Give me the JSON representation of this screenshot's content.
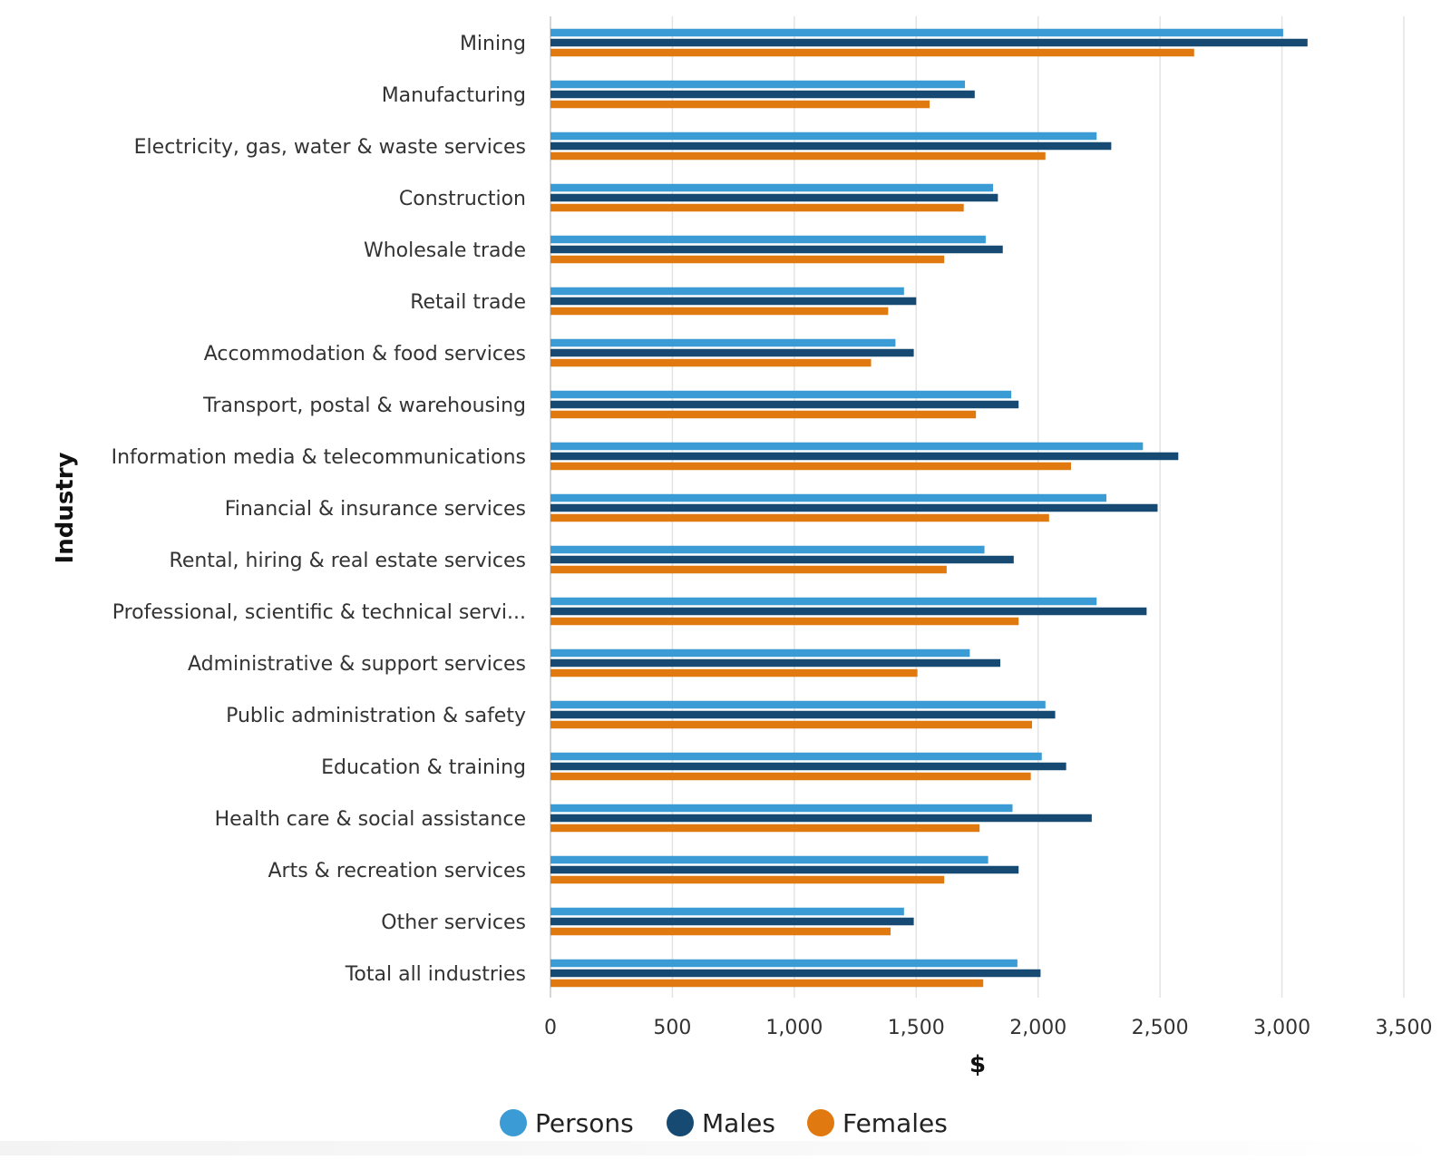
{
  "chart_data": {
    "type": "bar",
    "orientation": "horizontal",
    "title": "",
    "xlabel": "$",
    "ylabel": "Industry",
    "xlim": [
      0,
      3500
    ],
    "xticks": [
      0,
      500,
      1000,
      1500,
      2000,
      2500,
      3000,
      3500
    ],
    "xtick_labels": [
      "0",
      "500",
      "1,000",
      "1,500",
      "2,000",
      "2,500",
      "3,000",
      "3,500"
    ],
    "grid": true,
    "legend_position": "bottom",
    "categories": [
      "Mining",
      "Manufacturing",
      "Electricity, gas, water & waste services",
      "Construction",
      "Wholesale trade",
      "Retail trade",
      "Accommodation & food services",
      "Transport, postal & warehousing",
      "Information media & telecommunications",
      "Financial & insurance services",
      "Rental, hiring & real estate services",
      "Professional, scientific & technical servi...",
      "Administrative & support services",
      "Public administration & safety",
      "Education & training",
      "Health care & social assistance",
      "Arts & recreation services",
      "Other services",
      "Total all industries"
    ],
    "series": [
      {
        "name": "Persons",
        "color": "#3a9bd5",
        "values": [
          3005,
          1700,
          2240,
          1815,
          1785,
          1450,
          1415,
          1890,
          2430,
          2280,
          1780,
          2240,
          1720,
          2030,
          2015,
          1895,
          1795,
          1450,
          1915
        ]
      },
      {
        "name": "Males",
        "color": "#164a72",
        "values": [
          3105,
          1740,
          2300,
          1835,
          1855,
          1500,
          1490,
          1920,
          2575,
          2490,
          1900,
          2445,
          1845,
          2070,
          2115,
          2220,
          1920,
          1490,
          2010
        ]
      },
      {
        "name": "Females",
        "color": "#e07a10",
        "values": [
          2640,
          1555,
          2030,
          1695,
          1615,
          1385,
          1315,
          1745,
          2135,
          2045,
          1625,
          1920,
          1505,
          1975,
          1970,
          1760,
          1615,
          1395,
          1775
        ]
      }
    ]
  }
}
